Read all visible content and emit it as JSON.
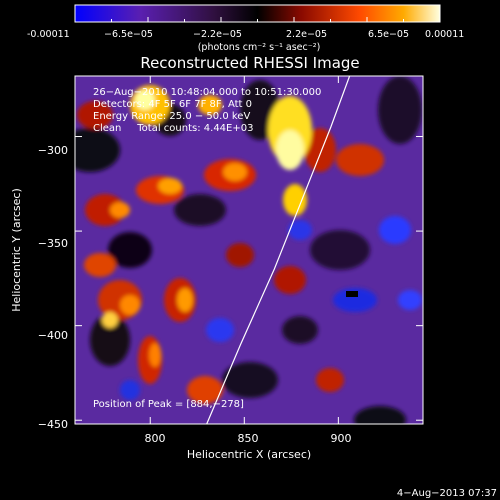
{
  "chart_data": {
    "type": "heatmap",
    "title": "Reconstructed RHESSI Image",
    "xlabel": "Heliocentric X (arcsec)",
    "ylabel": "Heliocentric Y (arcsec)",
    "xlim": [
      760,
      945
    ],
    "ylim": [
      -452,
      -268
    ],
    "xticks": [
      800,
      850,
      900
    ],
    "yticks": [
      -300,
      -350,
      -400,
      -450
    ],
    "colorbar": {
      "range": [
        -0.00011,
        0.00011
      ],
      "tick_labels": [
        "-0.00011",
        "−6.5e−05",
        "−2.2e−05",
        "2.2e−05",
        "6.5e−05",
        "0.00011"
      ],
      "label": "(photons cm⁻² s⁻¹ asec⁻²)"
    },
    "info_lines": [
      "26−Aug−2010 10:48:04.000 to 10:51:30.000",
      "Detectors: 4F 5F 6F 7F 8F, Att 0",
      "Energy Range: 25.0 − 50.0 keV",
      "Clean     Total counts: 4.44E+03"
    ],
    "peak_label": "Position of Peak = [884,−278]",
    "limb_line": {
      "x": [
        830,
        848,
        866,
        882,
        896,
        906
      ],
      "y": [
        -452,
        -410,
        -370,
        -330,
        -295,
        -268
      ]
    },
    "grid": false
  },
  "timestamp": "4−Aug−2013 07:37"
}
